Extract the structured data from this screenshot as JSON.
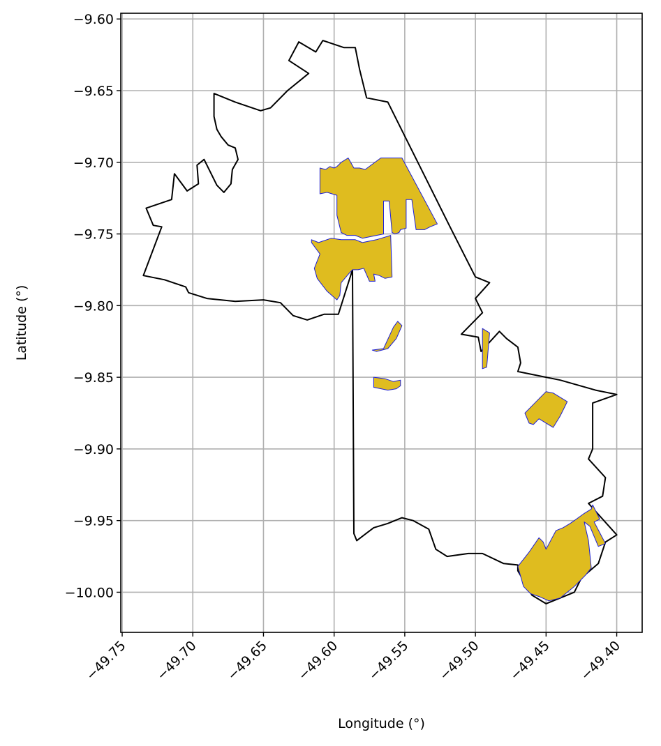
{
  "chart_data": {
    "type": "map",
    "xlabel": "Longitude (°)",
    "ylabel": "Latitude (°)",
    "xlim": [
      -49.751,
      -49.382
    ],
    "ylim": [
      -10.028,
      -9.596
    ],
    "grid": true,
    "x_ticks": [
      {
        "value": -49.75,
        "label": "−49.75"
      },
      {
        "value": -49.7,
        "label": "−49.70"
      },
      {
        "value": -49.65,
        "label": "−49.65"
      },
      {
        "value": -49.6,
        "label": "−49.60"
      },
      {
        "value": -49.55,
        "label": "−49.55"
      },
      {
        "value": -49.5,
        "label": "−49.50"
      },
      {
        "value": -49.45,
        "label": "−49.45"
      },
      {
        "value": -49.4,
        "label": "−49.40"
      }
    ],
    "y_ticks": [
      {
        "value": -9.6,
        "label": "−9.60"
      },
      {
        "value": -9.65,
        "label": "−9.65"
      },
      {
        "value": -9.7,
        "label": "−9.70"
      },
      {
        "value": -9.75,
        "label": "−9.75"
      },
      {
        "value": -9.8,
        "label": "−9.80"
      },
      {
        "value": -9.85,
        "label": "−9.85"
      },
      {
        "value": -9.9,
        "label": "−9.90"
      },
      {
        "value": -9.95,
        "label": "−9.95"
      },
      {
        "value": -10.0,
        "label": "−10.00"
      }
    ],
    "boundary": {
      "stroke": "#000000",
      "points": [
        [
          -49.685,
          -9.652
        ],
        [
          -49.67,
          -9.658
        ],
        [
          -49.652,
          -9.664
        ],
        [
          -49.645,
          -9.662
        ],
        [
          -49.633,
          -9.65
        ],
        [
          -49.618,
          -9.638
        ],
        [
          -49.632,
          -9.629
        ],
        [
          -49.625,
          -9.616
        ],
        [
          -49.613,
          -9.623
        ],
        [
          -49.608,
          -9.615
        ],
        [
          -49.593,
          -9.62
        ],
        [
          -49.585,
          -9.62
        ],
        [
          -49.582,
          -9.635
        ],
        [
          -49.577,
          -9.655
        ],
        [
          -49.562,
          -9.658
        ],
        [
          -49.518,
          -9.745
        ],
        [
          -49.5,
          -9.78
        ],
        [
          -49.49,
          -9.784
        ],
        [
          -49.5,
          -9.795
        ],
        [
          -49.495,
          -9.805
        ],
        [
          -49.51,
          -9.82
        ],
        [
          -49.498,
          -9.822
        ],
        [
          -49.496,
          -9.832
        ],
        [
          -49.483,
          -9.818
        ],
        [
          -49.478,
          -9.823
        ],
        [
          -49.47,
          -9.829
        ],
        [
          -49.468,
          -9.84
        ],
        [
          -49.47,
          -9.846
        ],
        [
          -49.46,
          -9.848
        ],
        [
          -49.44,
          -9.852
        ],
        [
          -49.415,
          -9.859
        ],
        [
          -49.4,
          -9.862
        ],
        [
          -49.417,
          -9.868
        ],
        [
          -49.417,
          -9.9
        ],
        [
          -49.42,
          -9.907
        ],
        [
          -49.408,
          -9.92
        ],
        [
          -49.41,
          -9.933
        ],
        [
          -49.42,
          -9.938
        ],
        [
          -49.4,
          -9.96
        ],
        [
          -49.408,
          -9.965
        ],
        [
          -49.413,
          -9.98
        ],
        [
          -49.425,
          -9.99
        ],
        [
          -49.43,
          -10.0
        ],
        [
          -49.44,
          -10.004
        ],
        [
          -49.45,
          -10.008
        ],
        [
          -49.46,
          -10.002
        ],
        [
          -49.47,
          -9.985
        ],
        [
          -49.47,
          -9.981
        ],
        [
          -49.48,
          -9.98
        ],
        [
          -49.495,
          -9.973
        ],
        [
          -49.505,
          -9.973
        ],
        [
          -49.52,
          -9.975
        ],
        [
          -49.528,
          -9.97
        ],
        [
          -49.533,
          -9.956
        ],
        [
          -49.544,
          -9.95
        ],
        [
          -49.552,
          -9.948
        ],
        [
          -49.562,
          -9.952
        ],
        [
          -49.572,
          -9.955
        ],
        [
          -49.584,
          -9.964
        ],
        [
          -49.586,
          -9.959
        ],
        [
          -49.587,
          -9.775
        ],
        [
          -49.597,
          -9.806
        ],
        [
          -49.607,
          -9.806
        ],
        [
          -49.619,
          -9.81
        ],
        [
          -49.629,
          -9.807
        ],
        [
          -49.638,
          -9.798
        ],
        [
          -49.65,
          -9.796
        ],
        [
          -49.67,
          -9.797
        ],
        [
          -49.69,
          -9.795
        ],
        [
          -49.703,
          -9.791
        ],
        [
          -49.705,
          -9.787
        ],
        [
          -49.72,
          -9.782
        ],
        [
          -49.735,
          -9.779
        ],
        [
          -49.722,
          -9.745
        ],
        [
          -49.728,
          -9.744
        ],
        [
          -49.733,
          -9.732
        ],
        [
          -49.715,
          -9.726
        ],
        [
          -49.713,
          -9.708
        ],
        [
          -49.704,
          -9.72
        ],
        [
          -49.696,
          -9.715
        ],
        [
          -49.697,
          -9.702
        ],
        [
          -49.692,
          -9.698
        ],
        [
          -49.683,
          -9.716
        ],
        [
          -49.678,
          -9.721
        ],
        [
          -49.673,
          -9.715
        ],
        [
          -49.672,
          -9.705
        ],
        [
          -49.668,
          -9.698
        ],
        [
          -49.67,
          -9.69
        ],
        [
          -49.675,
          -9.688
        ],
        [
          -49.68,
          -9.682
        ],
        [
          -49.683,
          -9.677
        ],
        [
          -49.685,
          -9.668
        ]
      ]
    },
    "regions_style": {
      "fill": "#DFBC1F",
      "stroke": "#1C1FD8"
    },
    "regions": [
      {
        "points": [
          [
            -49.61,
            -9.704
          ],
          [
            -49.606,
            -9.705
          ],
          [
            -49.603,
            -9.703
          ],
          [
            -49.6,
            -9.704
          ],
          [
            -49.598,
            -9.703
          ],
          [
            -49.595,
            -9.7
          ],
          [
            -49.59,
            -9.697
          ],
          [
            -49.586,
            -9.704
          ],
          [
            -49.582,
            -9.704
          ],
          [
            -49.578,
            -9.705
          ],
          [
            -49.567,
            -9.697
          ],
          [
            -49.552,
            -9.697
          ],
          [
            -49.527,
            -9.743
          ],
          [
            -49.532,
            -9.745
          ],
          [
            -49.536,
            -9.747
          ],
          [
            -49.542,
            -9.747
          ],
          [
            -49.545,
            -9.726
          ],
          [
            -49.549,
            -9.726
          ],
          [
            -49.549,
            -9.746
          ],
          [
            -49.553,
            -9.747
          ],
          [
            -49.554,
            -9.749
          ],
          [
            -49.557,
            -9.75
          ],
          [
            -49.559,
            -9.749
          ],
          [
            -49.561,
            -9.727
          ],
          [
            -49.565,
            -9.727
          ],
          [
            -49.565,
            -9.75
          ],
          [
            -49.57,
            -9.751
          ],
          [
            -49.58,
            -9.753
          ],
          [
            -49.585,
            -9.751
          ],
          [
            -49.591,
            -9.751
          ],
          [
            -49.595,
            -9.749
          ],
          [
            -49.598,
            -9.737
          ],
          [
            -49.598,
            -9.723
          ],
          [
            -49.605,
            -9.721
          ],
          [
            -49.61,
            -9.722
          ]
        ]
      },
      {
        "points": [
          [
            -49.616,
            -9.754
          ],
          [
            -49.611,
            -9.756
          ],
          [
            -49.602,
            -9.753
          ],
          [
            -49.595,
            -9.754
          ],
          [
            -49.585,
            -9.754
          ],
          [
            -49.58,
            -9.756
          ],
          [
            -49.57,
            -9.754
          ],
          [
            -49.56,
            -9.751
          ],
          [
            -49.559,
            -9.78
          ],
          [
            -49.564,
            -9.781
          ],
          [
            -49.568,
            -9.779
          ],
          [
            -49.572,
            -9.778
          ],
          [
            -49.571,
            -9.783
          ],
          [
            -49.575,
            -9.783
          ],
          [
            -49.579,
            -9.774
          ],
          [
            -49.583,
            -9.775
          ],
          [
            -49.587,
            -9.775
          ],
          [
            -49.589,
            -9.777
          ],
          [
            -49.595,
            -9.784
          ],
          [
            -49.596,
            -9.793
          ],
          [
            -49.598,
            -9.796
          ],
          [
            -49.605,
            -9.79
          ],
          [
            -49.612,
            -9.781
          ],
          [
            -49.614,
            -9.774
          ],
          [
            -49.61,
            -9.764
          ],
          [
            -49.616,
            -9.756
          ]
        ]
      },
      {
        "points": [
          [
            -49.565,
            -9.83
          ],
          [
            -49.558,
            -9.815
          ],
          [
            -49.555,
            -9.811
          ],
          [
            -49.552,
            -9.814
          ],
          [
            -49.556,
            -9.823
          ],
          [
            -49.562,
            -9.83
          ],
          [
            -49.57,
            -9.832
          ],
          [
            -49.573,
            -9.831
          ]
        ]
      },
      {
        "points": [
          [
            -49.572,
            -9.85
          ],
          [
            -49.564,
            -9.851
          ],
          [
            -49.558,
            -9.853
          ],
          [
            -49.553,
            -9.852
          ],
          [
            -49.553,
            -9.856
          ],
          [
            -49.556,
            -9.858
          ],
          [
            -49.562,
            -9.859
          ],
          [
            -49.572,
            -9.857
          ]
        ]
      },
      {
        "points": [
          [
            -49.495,
            -9.816
          ],
          [
            -49.49,
            -9.819
          ],
          [
            -49.492,
            -9.843
          ],
          [
            -49.495,
            -9.844
          ]
        ]
      },
      {
        "points": [
          [
            -49.465,
            -9.875
          ],
          [
            -49.46,
            -9.87
          ],
          [
            -49.45,
            -9.86
          ],
          [
            -49.445,
            -9.861
          ],
          [
            -49.435,
            -9.867
          ],
          [
            -49.44,
            -9.877
          ],
          [
            -49.445,
            -9.885
          ],
          [
            -49.455,
            -9.879
          ],
          [
            -49.459,
            -9.883
          ],
          [
            -49.462,
            -9.882
          ]
        ]
      },
      {
        "points": [
          [
            -49.47,
            -9.982
          ],
          [
            -49.462,
            -9.972
          ],
          [
            -49.455,
            -9.962
          ],
          [
            -49.452,
            -9.965
          ],
          [
            -49.45,
            -9.97
          ],
          [
            -49.443,
            -9.957
          ],
          [
            -49.438,
            -9.955
          ],
          [
            -49.433,
            -9.952
          ],
          [
            -49.43,
            -9.95
          ],
          [
            -49.423,
            -9.945
          ],
          [
            -49.418,
            -9.942
          ],
          [
            -49.417,
            -9.939
          ],
          [
            -49.412,
            -9.949
          ],
          [
            -49.416,
            -9.951
          ],
          [
            -49.408,
            -9.966
          ],
          [
            -49.413,
            -9.968
          ],
          [
            -49.419,
            -9.954
          ],
          [
            -49.423,
            -9.951
          ],
          [
            -49.42,
            -9.964
          ],
          [
            -49.418,
            -9.983
          ],
          [
            -49.422,
            -9.988
          ],
          [
            -49.425,
            -9.991
          ],
          [
            -49.43,
            -9.996
          ],
          [
            -49.44,
            -10.004
          ],
          [
            -49.448,
            -10.006
          ],
          [
            -49.455,
            -10.003
          ],
          [
            -49.461,
            -10.001
          ],
          [
            -49.466,
            -9.996
          ],
          [
            -49.468,
            -9.989
          ]
        ]
      }
    ]
  }
}
